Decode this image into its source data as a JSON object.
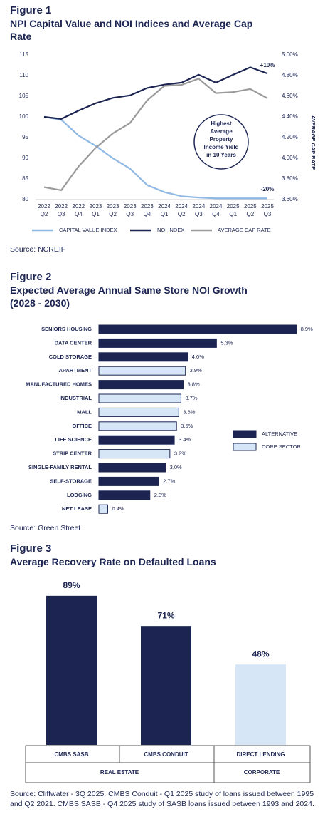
{
  "chart_data": [
    {
      "type": "line",
      "figure_label": "Figure 1",
      "title": "NPI Capital Value and NOI Indices and Average Cap Rate",
      "categories": [
        "2022 Q2",
        "2022 Q3",
        "2022 Q4",
        "2023 Q1",
        "2023 Q2",
        "2023 Q3",
        "2023 Q4",
        "2024 Q1",
        "2024 Q2",
        "2024 Q3",
        "2024 Q4",
        "2025 Q1",
        "2025 Q2",
        "2025 Q3"
      ],
      "series": [
        {
          "name": "CAPITAL VALUE INDEX",
          "color": "#8fb8e3",
          "values": [
            100,
            99.3,
            95.5,
            93,
            90,
            87.5,
            83.5,
            81.8,
            80.8,
            80.5,
            80.3,
            80.3,
            80.3,
            80.3
          ]
        },
        {
          "name": "NOI INDEX",
          "color": "#1c2552",
          "values": [
            100,
            99.5,
            101.5,
            103.3,
            104.6,
            105.2,
            107,
            107.8,
            108.3,
            110.2,
            108.3,
            110.2,
            112,
            110.5
          ]
        },
        {
          "name": "AVERAGE CAP RATE",
          "color": "#9a9a9a",
          "axis": "y2",
          "values": [
            3.72,
            3.69,
            3.92,
            4.1,
            4.24,
            4.34,
            4.56,
            4.7,
            4.71,
            4.77,
            4.63,
            4.64,
            4.67,
            4.58
          ]
        }
      ],
      "ylim": [
        80,
        115
      ],
      "yticks": [
        80,
        85,
        90,
        95,
        100,
        105,
        110,
        115
      ],
      "y2lim": [
        3.6,
        5.0
      ],
      "y2ticks": [
        {
          "value": 3.6,
          "label": "3.60%"
        },
        {
          "value": 3.8,
          "label": "3.80%"
        },
        {
          "value": 4.0,
          "label": "4.00%"
        },
        {
          "value": 4.2,
          "label": "4.20%"
        },
        {
          "value": 4.4,
          "label": "4.40%"
        },
        {
          "value": 4.6,
          "label": "4.60%"
        },
        {
          "value": 4.8,
          "label": "4.80%"
        },
        {
          "value": 5.0,
          "label": "5.00%"
        }
      ],
      "y2label": "AVERAGE CAP RATE",
      "annotations": [
        "Highest Average Property Income Yield in 10 Years",
        "+10%",
        "-20%"
      ],
      "legend": "bottom",
      "grid": false,
      "source": "Source: NCREIF"
    },
    {
      "type": "hbar",
      "figure_label": "Figure 2",
      "title": "Expected Average Annual Same Store NOI Growth (2028 - 2030)",
      "categories": [
        "SENIORS HOUSING",
        "DATA CENTER",
        "COLD STORAGE",
        "APARTMENT",
        "MANUFACTURED HOMES",
        "INDUSTRIAL",
        "MALL",
        "OFFICE",
        "LIFE SCIENCE",
        "STRIP CENTER",
        "SINGLE-FAMILY RENTAL",
        "SELF-STORAGE",
        "LODGING",
        "NET LEASE"
      ],
      "series": [
        {
          "name": "ALTERNATIVE",
          "color": "#1c2552",
          "values": [
            8.9,
            5.3,
            4.0,
            null,
            3.8,
            null,
            null,
            null,
            3.4,
            null,
            3.0,
            2.7,
            2.3,
            null
          ],
          "value_labels": [
            "8.9%",
            "5.3%",
            "4.0%",
            null,
            "3.8%",
            null,
            null,
            null,
            "3.4%",
            null,
            "3.0%",
            "2.7%",
            "2.3%",
            null
          ]
        },
        {
          "name": "CORE SECTOR",
          "color": "#d6e6f7",
          "values": [
            null,
            null,
            null,
            3.9,
            null,
            3.7,
            3.6,
            3.5,
            null,
            3.2,
            null,
            null,
            null,
            0.4
          ],
          "value_labels": [
            null,
            null,
            null,
            "3.9%",
            null,
            "3.7%",
            "3.6%",
            "3.5%",
            null,
            "3.2%",
            null,
            null,
            null,
            "0.4%"
          ]
        }
      ],
      "legend": "right",
      "source": "Source: Green Street"
    },
    {
      "type": "bar",
      "figure_label": "Figure 3",
      "title": "Average Recovery Rate on Defaulted Loans",
      "categories": [
        "CMBS SASB",
        "CMBS CONDUIT",
        "DIRECT LENDING"
      ],
      "values": [
        89,
        71,
        48
      ],
      "value_labels": [
        "89%",
        "71%",
        "48%"
      ],
      "colors": [
        "#1c2552",
        "#1c2552",
        "#d6e6f7"
      ],
      "groups": [
        "REAL ESTATE",
        "CORPORATE"
      ],
      "source": "Source: Cliffwater - 3Q 2025. CMBS Conduit - Q1 2025 study of loans issued between 1995 and Q2 2021. CMBS SASB - Q4 2025 study of SASB loans issued between 1993 and 2024."
    }
  ]
}
